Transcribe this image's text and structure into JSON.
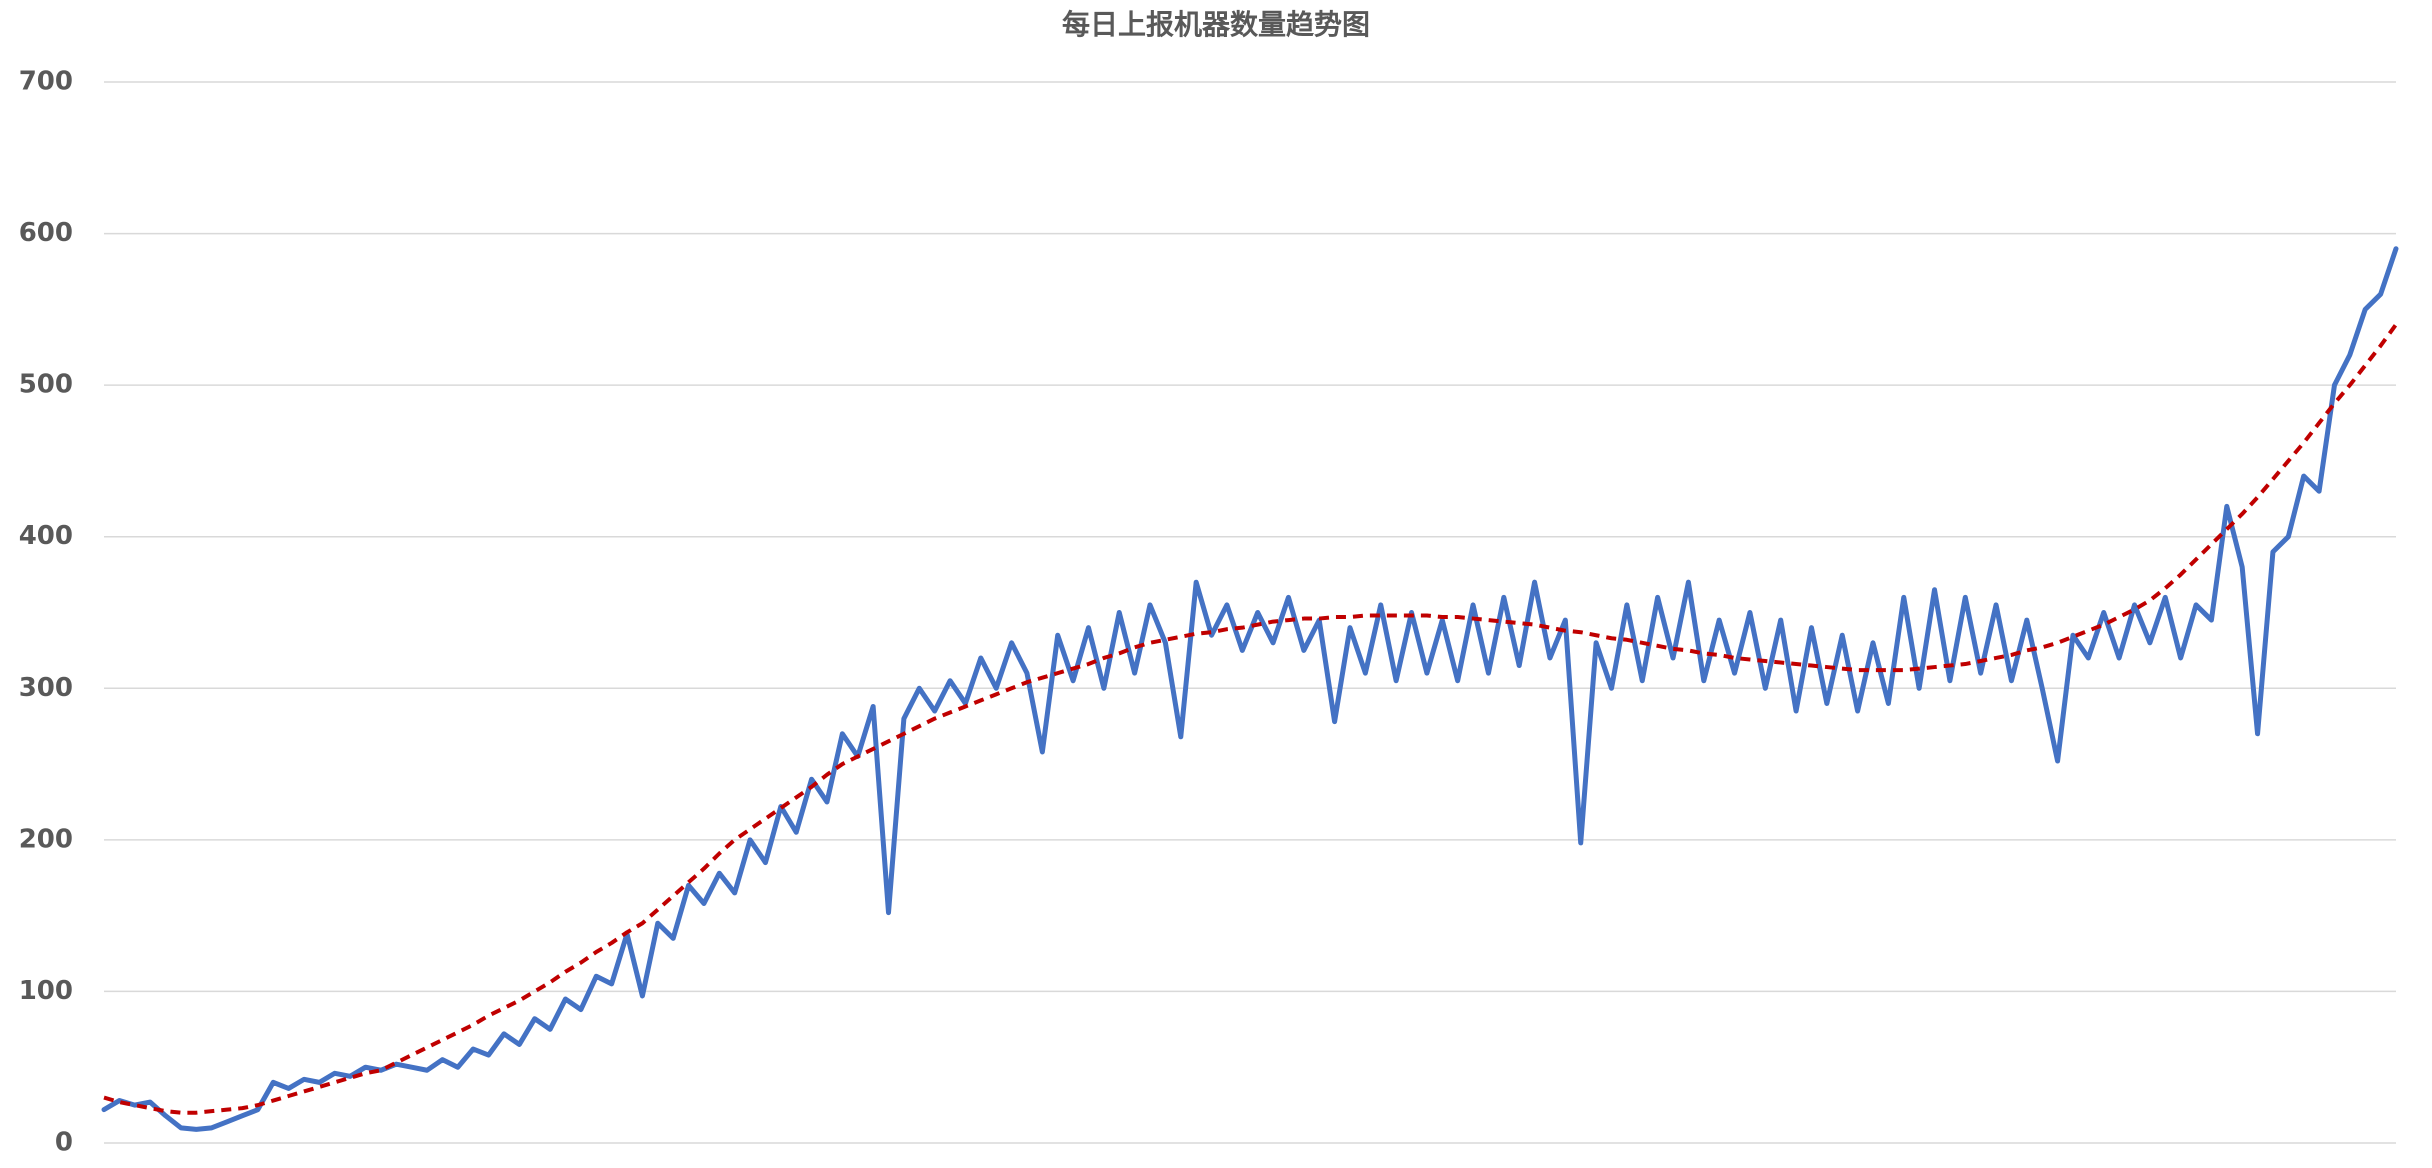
{
  "chart_data": {
    "type": "line",
    "title": "每日上报机器数量趋势图",
    "ylim": [
      0,
      700
    ],
    "yticks": [
      0,
      100,
      200,
      300,
      400,
      500,
      600,
      700
    ],
    "grid": true,
    "series": [
      {
        "color": "#4472c4",
        "style": "solid",
        "values": [
          22,
          28,
          25,
          27,
          18,
          10,
          9,
          10,
          14,
          18,
          22,
          40,
          36,
          42,
          40,
          46,
          44,
          50,
          48,
          52,
          50,
          48,
          55,
          50,
          62,
          58,
          72,
          65,
          82,
          75,
          95,
          88,
          110,
          105,
          138,
          97,
          145,
          135,
          170,
          158,
          178,
          165,
          200,
          185,
          222,
          205,
          240,
          225,
          270,
          255,
          288,
          152,
          280,
          300,
          285,
          305,
          290,
          320,
          300,
          330,
          310,
          258,
          335,
          305,
          340,
          300,
          350,
          310,
          355,
          330,
          268,
          370,
          335,
          355,
          325,
          350,
          330,
          360,
          325,
          345,
          278,
          340,
          310,
          355,
          305,
          350,
          310,
          345,
          305,
          355,
          310,
          360,
          315,
          370,
          320,
          345,
          198,
          330,
          300,
          355,
          305,
          360,
          320,
          370,
          305,
          345,
          310,
          350,
          300,
          345,
          285,
          340,
          290,
          335,
          285,
          330,
          290,
          360,
          300,
          365,
          305,
          360,
          310,
          355,
          305,
          345,
          300,
          252,
          335,
          320,
          350,
          320,
          355,
          330,
          360,
          320,
          355,
          345,
          420,
          380,
          270,
          390,
          400,
          440,
          430,
          500,
          520,
          550,
          560,
          590
        ]
      },
      {
        "color": "#c00000",
        "style": "dashed",
        "values": [
          30,
          27,
          25,
          23,
          21,
          20,
          20,
          21,
          22,
          23,
          25,
          28,
          31,
          34,
          37,
          40,
          43,
          46,
          48,
          53,
          58,
          63,
          68,
          73,
          78,
          84,
          89,
          94,
          100,
          106,
          113,
          119,
          126,
          132,
          139,
          145,
          154,
          163,
          172,
          181,
          191,
          200,
          207,
          214,
          221,
          228,
          235,
          243,
          250,
          255,
          260,
          265,
          270,
          275,
          280,
          284,
          288,
          292,
          296,
          300,
          304,
          307,
          310,
          313,
          316,
          320,
          323,
          327,
          330,
          332,
          334,
          336,
          337,
          339,
          340,
          342,
          344,
          345,
          346,
          346,
          347,
          347,
          348,
          348,
          348,
          348,
          348,
          347,
          347,
          346,
          345,
          344,
          343,
          342,
          340,
          338,
          337,
          335,
          333,
          332,
          330,
          328,
          326,
          325,
          323,
          322,
          320,
          319,
          318,
          317,
          316,
          315,
          314,
          313,
          312,
          312,
          312,
          312,
          313,
          314,
          315,
          316,
          318,
          320,
          322,
          325,
          327,
          330,
          334,
          338,
          342,
          347,
          352,
          358,
          366,
          375,
          385,
          395,
          405,
          415,
          426,
          438,
          450,
          462,
          475,
          488,
          500,
          513,
          526,
          540
        ]
      }
    ]
  }
}
